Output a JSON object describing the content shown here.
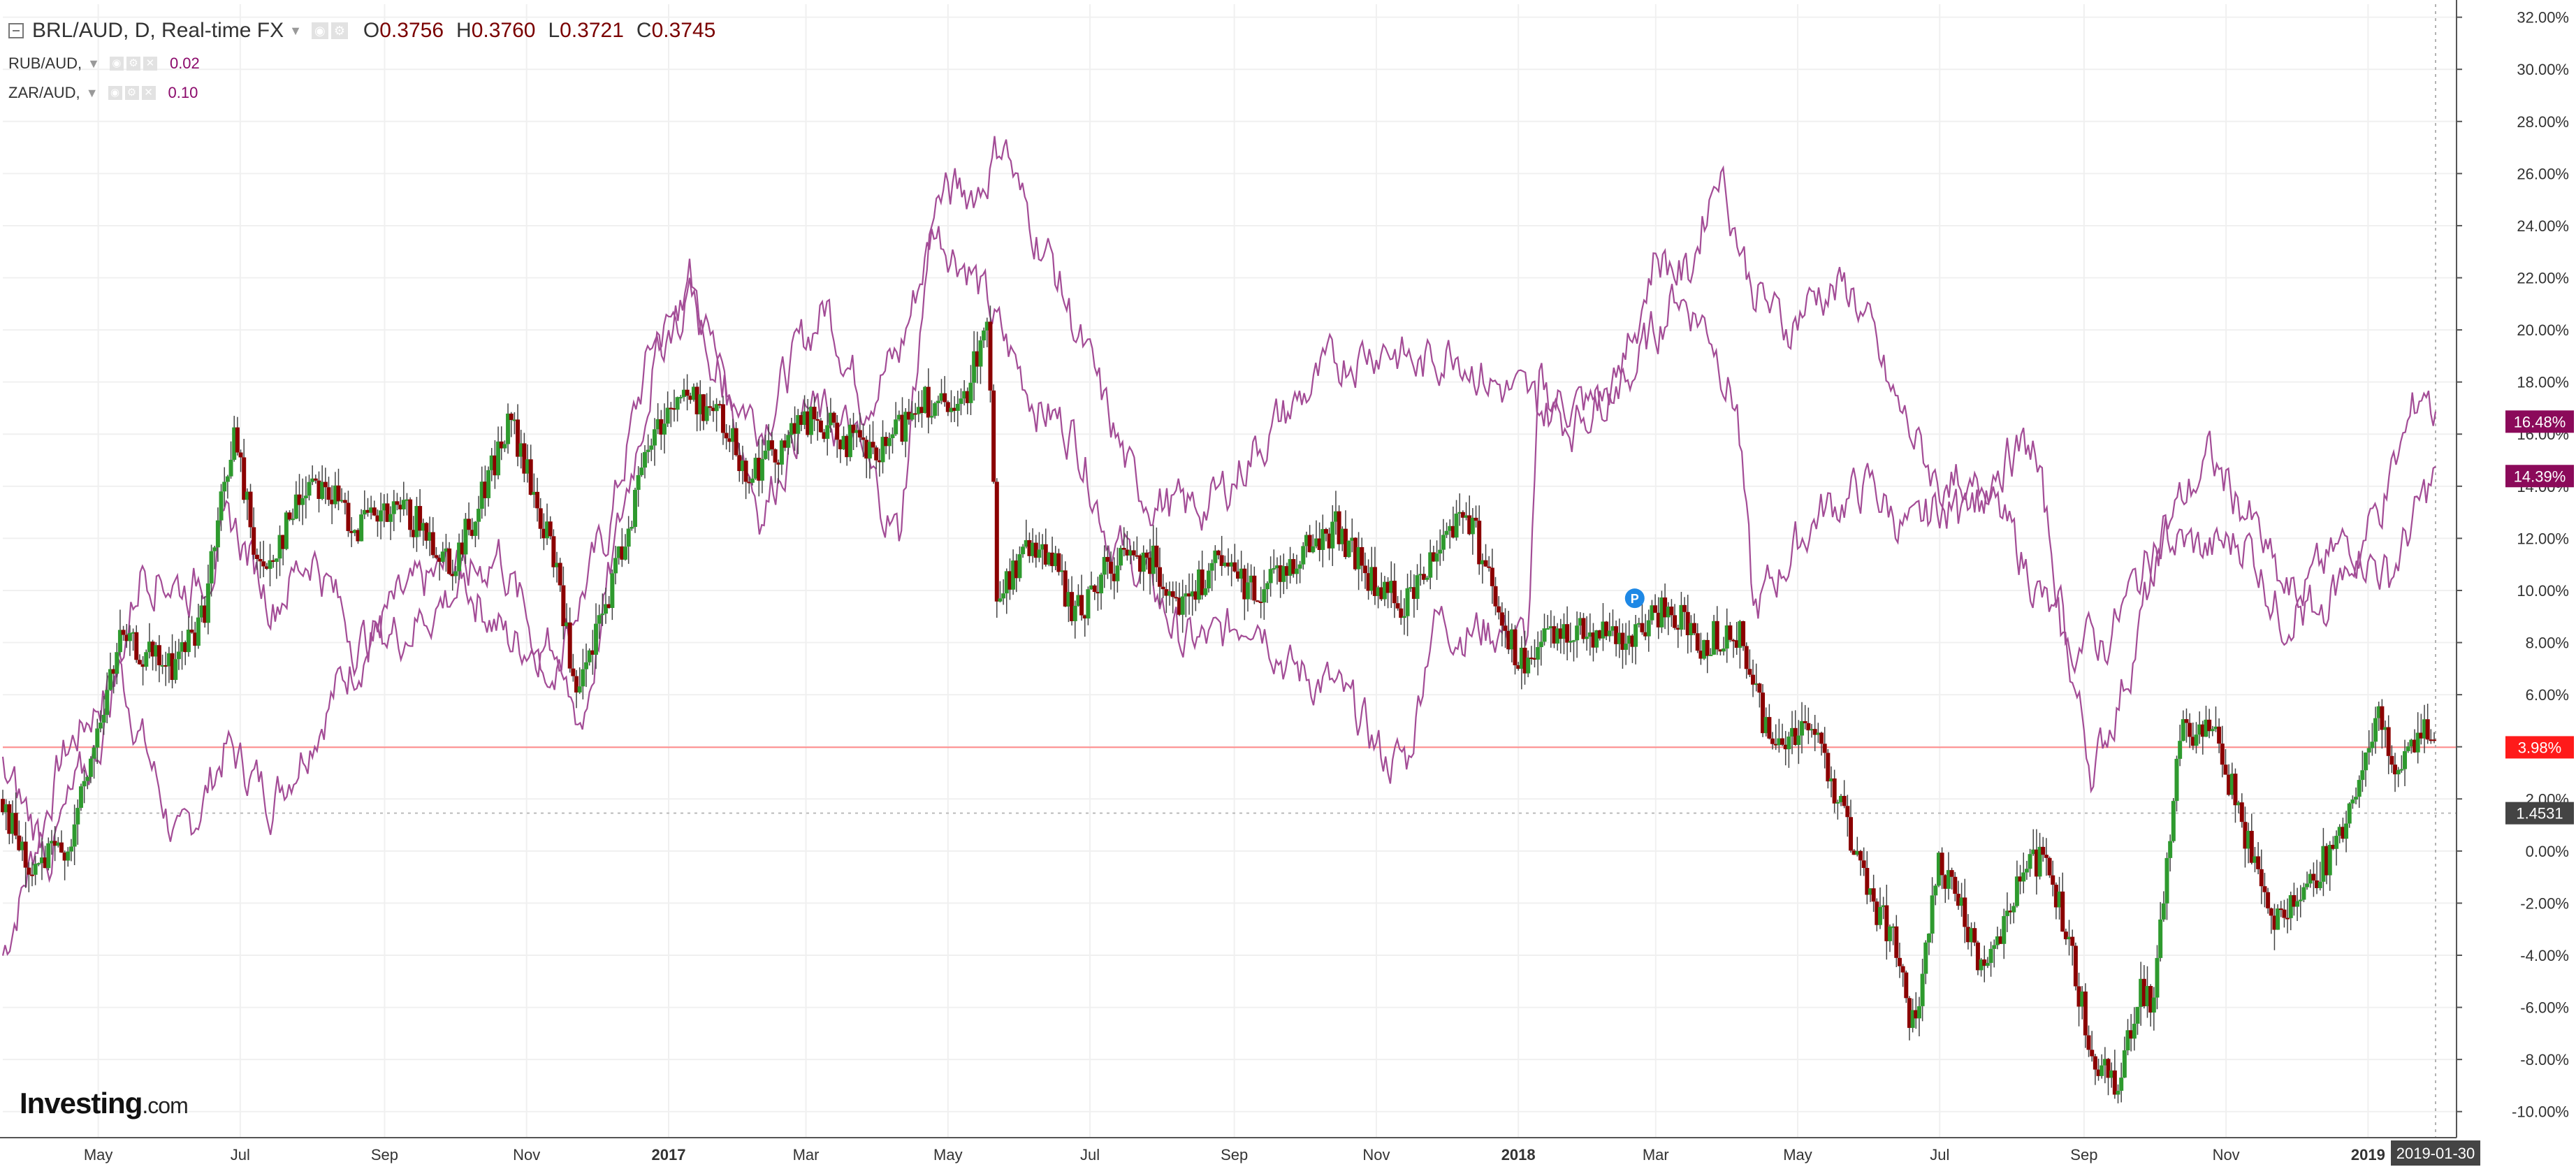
{
  "legend": {
    "main": {
      "symbol": "BRL/AUD, D, Real-time FX",
      "open_key": "O",
      "open": "0.3756",
      "high_key": "H",
      "high": "0.3760",
      "low_key": "L",
      "low": "0.3721",
      "close_key": "C",
      "close": "0.3745"
    },
    "compare": [
      {
        "symbol": "RUB/AUD,",
        "value": "0.02"
      },
      {
        "symbol": "ZAR/AUD,",
        "value": "0.10"
      }
    ]
  },
  "logo": {
    "brand": "Investing",
    "suffix": ".com"
  },
  "colors": {
    "up": "#2e9a2e",
    "down": "#8b0000",
    "compare_line": "#a34c96",
    "last_price_badge": "#ff1a1a",
    "rub_badge": "#8b0a5a",
    "zar_badge": "#8b0a5a",
    "crosshair_badge": "#444444",
    "grid": "#f0f0f0"
  },
  "markers": {
    "p_marker": "P"
  },
  "chart_data": {
    "type": "line",
    "title": "BRL/AUD, D, Real-time FX",
    "y_axis": {
      "unit": "percent change",
      "range": [
        -11,
        32.5
      ],
      "ticks": [
        32,
        30,
        28,
        26,
        24,
        22,
        20,
        18,
        16,
        14,
        12,
        10,
        8,
        6,
        4,
        2,
        0,
        -2,
        -4,
        -6,
        -8,
        -10
      ],
      "tick_labels": [
        "32.00%",
        "30.00%",
        "28.00%",
        "26.00%",
        "24.00%",
        "22.00%",
        "20.00%",
        "18.00%",
        "16.00%",
        "14.00%",
        "12.00%",
        "10.00%",
        "8.00%",
        "6.00%",
        "4.00%",
        "2.00%",
        "0.00%",
        "-2.00%",
        "-4.00%",
        "-6.00%",
        "-8.00%",
        "-10.00%"
      ],
      "side": "right"
    },
    "x_axis": {
      "range": [
        "2016-03-21",
        "2019-02-08"
      ],
      "tick_labels": [
        {
          "date": "2016-05-01",
          "label": "May"
        },
        {
          "date": "2016-07-01",
          "label": "Jul"
        },
        {
          "date": "2016-09-01",
          "label": "Sep"
        },
        {
          "date": "2016-11-01",
          "label": "Nov"
        },
        {
          "date": "2017-01-01",
          "label": "2017"
        },
        {
          "date": "2017-03-01",
          "label": "Mar"
        },
        {
          "date": "2017-05-01",
          "label": "May"
        },
        {
          "date": "2017-07-01",
          "label": "Jul"
        },
        {
          "date": "2017-09-01",
          "label": "Sep"
        },
        {
          "date": "2017-11-01",
          "label": "Nov"
        },
        {
          "date": "2018-01-01",
          "label": "2018"
        },
        {
          "date": "2018-03-01",
          "label": "Mar"
        },
        {
          "date": "2018-05-01",
          "label": "May"
        },
        {
          "date": "2018-07-01",
          "label": "Jul"
        },
        {
          "date": "2018-09-01",
          "label": "Sep"
        },
        {
          "date": "2018-11-01",
          "label": "Nov"
        },
        {
          "date": "2019-01-01",
          "label": "2019"
        }
      ]
    },
    "series": [
      {
        "name": "BRL/AUD",
        "style": "candles",
        "key_points": [
          [
            "2016-03-21",
            2.0
          ],
          [
            "2016-04-01",
            -1.0
          ],
          [
            "2016-04-20",
            0.5
          ],
          [
            "2016-05-10",
            8.0
          ],
          [
            "2016-06-01",
            7.0
          ],
          [
            "2016-06-15",
            9.0
          ],
          [
            "2016-06-28",
            16.0
          ],
          [
            "2016-07-10",
            10.5
          ],
          [
            "2016-08-01",
            14.5
          ],
          [
            "2016-08-20",
            12.5
          ],
          [
            "2016-09-10",
            13.0
          ],
          [
            "2016-10-01",
            11.0
          ],
          [
            "2016-10-25",
            16.5
          ],
          [
            "2016-11-15",
            10.5
          ],
          [
            "2016-11-22",
            5.5
          ],
          [
            "2016-12-10",
            11.0
          ],
          [
            "2016-12-25",
            16.0
          ],
          [
            "2017-01-05",
            17.5
          ],
          [
            "2017-01-20",
            17.0
          ],
          [
            "2017-02-05",
            14.5
          ],
          [
            "2017-03-01",
            16.5
          ],
          [
            "2017-03-15",
            16.0
          ],
          [
            "2017-04-01",
            15.0
          ],
          [
            "2017-04-20",
            17.5
          ],
          [
            "2017-05-05",
            16.5
          ],
          [
            "2017-05-18",
            20.5
          ],
          [
            "2017-05-22",
            10.0
          ],
          [
            "2017-06-10",
            12.0
          ],
          [
            "2017-06-25",
            9.0
          ],
          [
            "2017-07-10",
            11.0
          ],
          [
            "2017-07-25",
            11.5
          ],
          [
            "2017-08-10",
            9.5
          ],
          [
            "2017-08-25",
            11.0
          ],
          [
            "2017-09-10",
            10.0
          ],
          [
            "2017-10-01",
            11.5
          ],
          [
            "2017-10-15",
            12.5
          ],
          [
            "2017-11-01",
            10.0
          ],
          [
            "2017-11-15",
            9.5
          ],
          [
            "2017-12-01",
            12.5
          ],
          [
            "2017-12-10",
            13.0
          ],
          [
            "2017-12-20",
            10.5
          ],
          [
            "2018-01-01",
            7.0
          ],
          [
            "2018-01-20",
            8.5
          ],
          [
            "2018-02-05",
            8.5
          ],
          [
            "2018-02-20",
            8.0
          ],
          [
            "2018-03-05",
            9.5
          ],
          [
            "2018-03-20",
            8.0
          ],
          [
            "2018-04-05",
            8.5
          ],
          [
            "2018-04-20",
            4.0
          ],
          [
            "2018-05-05",
            5.0
          ],
          [
            "2018-05-15",
            3.0
          ],
          [
            "2018-06-01",
            -2.0
          ],
          [
            "2018-06-10",
            -3.0
          ],
          [
            "2018-06-20",
            -7.0
          ],
          [
            "2018-07-01",
            -0.5
          ],
          [
            "2018-07-20",
            -4.5
          ],
          [
            "2018-08-05",
            -1.0
          ],
          [
            "2018-08-15",
            0.0
          ],
          [
            "2018-08-25",
            -3.5
          ],
          [
            "2018-09-05",
            -8.0
          ],
          [
            "2018-09-15",
            -9.0
          ],
          [
            "2018-09-25",
            -5.0
          ],
          [
            "2018-10-01",
            -6.0
          ],
          [
            "2018-10-12",
            4.5
          ],
          [
            "2018-10-25",
            5.0
          ],
          [
            "2018-11-05",
            2.0
          ],
          [
            "2018-11-20",
            -2.5
          ],
          [
            "2018-12-05",
            -1.5
          ],
          [
            "2018-12-20",
            0.5
          ],
          [
            "2019-01-05",
            5.0
          ],
          [
            "2019-01-15",
            3.0
          ],
          [
            "2019-01-25",
            4.5
          ],
          [
            "2019-01-30",
            3.98
          ]
        ],
        "last_label": "3.98%"
      },
      {
        "name": "RUB/AUD",
        "style": "line",
        "points": [
          [
            "2016-03-21",
            -4.0
          ],
          [
            "2016-04-15",
            3.5
          ],
          [
            "2016-05-10",
            7.0
          ],
          [
            "2016-06-05",
            0.0
          ],
          [
            "2016-06-25",
            4.0
          ],
          [
            "2016-07-15",
            2.0
          ],
          [
            "2016-08-10",
            6.0
          ],
          [
            "2016-09-01",
            9.0
          ],
          [
            "2016-10-01",
            11.0
          ],
          [
            "2016-10-25",
            8.0
          ],
          [
            "2016-11-15",
            8.0
          ],
          [
            "2016-12-05",
            12.0
          ],
          [
            "2016-12-25",
            19.5
          ],
          [
            "2017-01-10",
            21.0
          ],
          [
            "2017-01-25",
            18.0
          ],
          [
            "2017-02-10",
            16.5
          ],
          [
            "2017-02-25",
            19.0
          ],
          [
            "2017-03-10",
            21.0
          ],
          [
            "2017-03-25",
            17.5
          ],
          [
            "2017-04-10",
            19.0
          ],
          [
            "2017-04-25",
            24.0
          ],
          [
            "2017-05-10",
            22.5
          ],
          [
            "2017-05-25",
            19.5
          ],
          [
            "2017-06-10",
            17.0
          ],
          [
            "2017-06-25",
            16.0
          ],
          [
            "2017-07-10",
            12.0
          ],
          [
            "2017-07-25",
            10.5
          ],
          [
            "2017-08-10",
            8.0
          ],
          [
            "2017-08-25",
            8.0
          ],
          [
            "2017-09-10",
            9.5
          ],
          [
            "2017-09-25",
            7.0
          ],
          [
            "2017-10-10",
            6.5
          ],
          [
            "2017-10-25",
            5.0
          ],
          [
            "2017-11-05",
            3.5
          ],
          [
            "2017-11-15",
            3.5
          ],
          [
            "2017-11-25",
            9.0
          ],
          [
            "2017-12-10",
            8.5
          ],
          [
            "2017-12-25",
            8.5
          ],
          [
            "2018-01-05",
            8.0
          ],
          [
            "2018-01-10",
            17.5
          ],
          [
            "2018-02-01",
            17.0
          ],
          [
            "2018-02-20",
            18.5
          ],
          [
            "2018-03-10",
            21.5
          ],
          [
            "2018-03-25",
            20.0
          ],
          [
            "2018-04-05",
            17.0
          ],
          [
            "2018-04-12",
            9.0
          ],
          [
            "2018-04-25",
            11.0
          ],
          [
            "2018-05-10",
            13.0
          ],
          [
            "2018-06-01",
            14.0
          ],
          [
            "2018-06-20",
            12.0
          ],
          [
            "2018-07-10",
            14.5
          ],
          [
            "2018-07-25",
            13.0
          ],
          [
            "2018-08-10",
            10.5
          ],
          [
            "2018-08-25",
            7.5
          ],
          [
            "2018-09-05",
            3.0
          ],
          [
            "2018-09-20",
            7.0
          ],
          [
            "2018-10-05",
            12.0
          ],
          [
            "2018-10-25",
            11.5
          ],
          [
            "2018-11-10",
            12.0
          ],
          [
            "2018-11-25",
            9.0
          ],
          [
            "2018-12-10",
            10.5
          ],
          [
            "2018-12-25",
            12.0
          ],
          [
            "2019-01-10",
            10.5
          ],
          [
            "2019-01-20",
            12.5
          ],
          [
            "2019-01-30",
            14.39
          ]
        ],
        "last_label": "14.39%"
      },
      {
        "name": "ZAR/AUD",
        "style": "line",
        "points": [
          [
            "2016-03-21",
            3.0
          ],
          [
            "2016-04-10",
            0.0
          ],
          [
            "2016-05-01",
            4.0
          ],
          [
            "2016-05-20",
            11.0
          ],
          [
            "2016-06-10",
            10.0
          ],
          [
            "2016-06-28",
            12.5
          ],
          [
            "2016-07-15",
            9.5
          ],
          [
            "2016-08-01",
            11.5
          ],
          [
            "2016-08-20",
            8.0
          ],
          [
            "2016-09-10",
            8.5
          ],
          [
            "2016-10-01",
            10.0
          ],
          [
            "2016-10-20",
            11.5
          ],
          [
            "2016-11-10",
            7.0
          ],
          [
            "2016-11-25",
            5.0
          ],
          [
            "2016-12-10",
            12.0
          ],
          [
            "2016-12-25",
            18.5
          ],
          [
            "2017-01-10",
            22.0
          ],
          [
            "2017-01-25",
            18.0
          ],
          [
            "2017-02-10",
            13.0
          ],
          [
            "2017-03-01",
            17.0
          ],
          [
            "2017-03-20",
            16.0
          ],
          [
            "2017-04-10",
            12.0
          ],
          [
            "2017-04-25",
            25.0
          ],
          [
            "2017-05-15",
            25.5
          ],
          [
            "2017-05-25",
            27.5
          ],
          [
            "2017-06-01",
            25.0
          ],
          [
            "2017-06-15",
            22.5
          ],
          [
            "2017-07-01",
            18.5
          ],
          [
            "2017-07-20",
            14.0
          ],
          [
            "2017-08-10",
            13.0
          ],
          [
            "2017-08-25",
            13.5
          ],
          [
            "2017-09-10",
            15.5
          ],
          [
            "2017-10-01",
            17.5
          ],
          [
            "2017-10-20",
            19.0
          ],
          [
            "2017-11-05",
            19.5
          ],
          [
            "2017-11-20",
            18.5
          ],
          [
            "2017-12-05",
            19.5
          ],
          [
            "2017-12-20",
            18.0
          ],
          [
            "2018-01-10",
            17.0
          ],
          [
            "2018-01-25",
            16.5
          ],
          [
            "2018-02-15",
            18.5
          ],
          [
            "2018-03-01",
            23.0
          ],
          [
            "2018-03-15",
            22.0
          ],
          [
            "2018-03-28",
            26.5
          ],
          [
            "2018-04-10",
            22.0
          ],
          [
            "2018-04-25",
            20.0
          ],
          [
            "2018-05-10",
            21.5
          ],
          [
            "2018-05-25",
            21.5
          ],
          [
            "2018-06-10",
            17.5
          ],
          [
            "2018-06-25",
            15.0
          ],
          [
            "2018-07-10",
            12.5
          ],
          [
            "2018-07-25",
            15.0
          ],
          [
            "2018-08-10",
            15.5
          ],
          [
            "2018-08-25",
            8.0
          ],
          [
            "2018-09-10",
            8.0
          ],
          [
            "2018-09-25",
            10.5
          ],
          [
            "2018-10-10",
            13.0
          ],
          [
            "2018-10-25",
            15.0
          ],
          [
            "2018-11-10",
            13.0
          ],
          [
            "2018-11-25",
            10.0
          ],
          [
            "2018-12-10",
            9.0
          ],
          [
            "2018-12-25",
            11.0
          ],
          [
            "2019-01-10",
            14.0
          ],
          [
            "2019-01-25",
            18.0
          ],
          [
            "2019-01-30",
            16.48
          ]
        ],
        "last_label": "16.48%"
      }
    ],
    "horizontal_lines": [
      {
        "value": 3.98,
        "style": "solid",
        "color": "#ff8a8a"
      },
      {
        "value": 1.4531,
        "style": "dotted",
        "color": "#bbbbbb",
        "label": "1.4531"
      }
    ],
    "crosshair": {
      "date": "2019-01-30",
      "label": "2019-01-30"
    },
    "p_marker": {
      "date": "2018-02-20",
      "value": 9.7
    },
    "grid": true,
    "legend_position": "top-left"
  }
}
